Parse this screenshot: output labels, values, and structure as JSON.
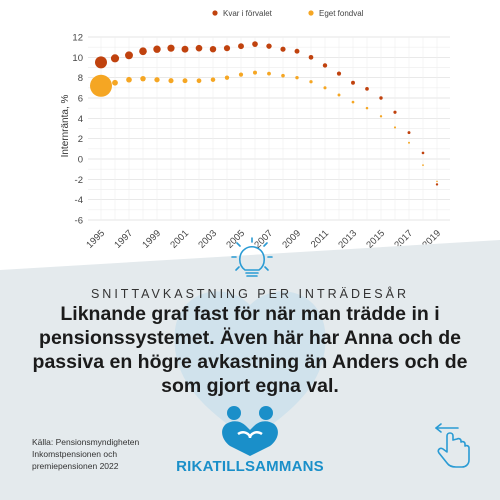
{
  "chart_data": {
    "type": "scatter",
    "ylabel": "Internränta, %",
    "ylim": [
      -6,
      12
    ],
    "yticks": [
      12,
      10,
      8,
      6,
      4,
      2,
      0,
      -2,
      -4,
      -6
    ],
    "xlim": [
      1995,
      2019
    ],
    "xticks": [
      1995,
      1997,
      1999,
      2001,
      2003,
      2005,
      2007,
      2009,
      2011,
      2013,
      2015,
      2017,
      2019
    ],
    "grid": true,
    "legend_position": "top-right",
    "series": [
      {
        "name": "Kvar i förvalet",
        "color": "#c0420e",
        "x": [
          1995,
          1996,
          1997,
          1998,
          1999,
          2000,
          2001,
          2002,
          2003,
          2004,
          2005,
          2006,
          2007,
          2008,
          2009,
          2010,
          2011,
          2012,
          2013,
          2014,
          2015,
          2016,
          2017,
          2018,
          2019
        ],
        "values": [
          9.5,
          9.9,
          10.2,
          10.6,
          10.8,
          10.9,
          10.8,
          10.9,
          10.8,
          10.9,
          11.1,
          11.3,
          11.1,
          10.8,
          10.6,
          10.0,
          9.2,
          8.4,
          7.5,
          6.9,
          6.0,
          4.6,
          2.6,
          0.6,
          -2.5
        ]
      },
      {
        "name": "Eget fondval",
        "color": "#f5a623",
        "x": [
          1995,
          1996,
          1997,
          1998,
          1999,
          2000,
          2001,
          2002,
          2003,
          2004,
          2005,
          2006,
          2007,
          2008,
          2009,
          2010,
          2011,
          2012,
          2013,
          2014,
          2015,
          2016,
          2017,
          2018,
          2019
        ],
        "values": [
          7.2,
          7.5,
          7.8,
          7.9,
          7.8,
          7.7,
          7.7,
          7.7,
          7.8,
          8.0,
          8.3,
          8.5,
          8.4,
          8.2,
          8.0,
          7.6,
          7.0,
          6.3,
          5.6,
          5.0,
          4.2,
          3.1,
          1.6,
          -0.6,
          -2.2
        ]
      }
    ]
  },
  "text": {
    "eyebrow": "SNITTAVKASTNING PER INTRÄDESÅR",
    "headline": "Liknande graf fast för när man trädde in i pensionssystemet. Även här har Anna och de passiva en högre avkastning än Anders och de som gjort egna val.",
    "source": "Källa: Pensionsmyndigheten Inkomstpensionen och premiepensionen 2022",
    "brand": "RIKATILLSAMMANS"
  },
  "colors": {
    "panel": "#e4eaed",
    "blob": "#d0e2ec",
    "brand": "#1a8fc9",
    "icon": "#2a9bd4"
  },
  "icons": {
    "top": "lightbulb-icon",
    "logo": "people-heart-logo-icon",
    "gesture": "swipe-left-hand-icon"
  }
}
